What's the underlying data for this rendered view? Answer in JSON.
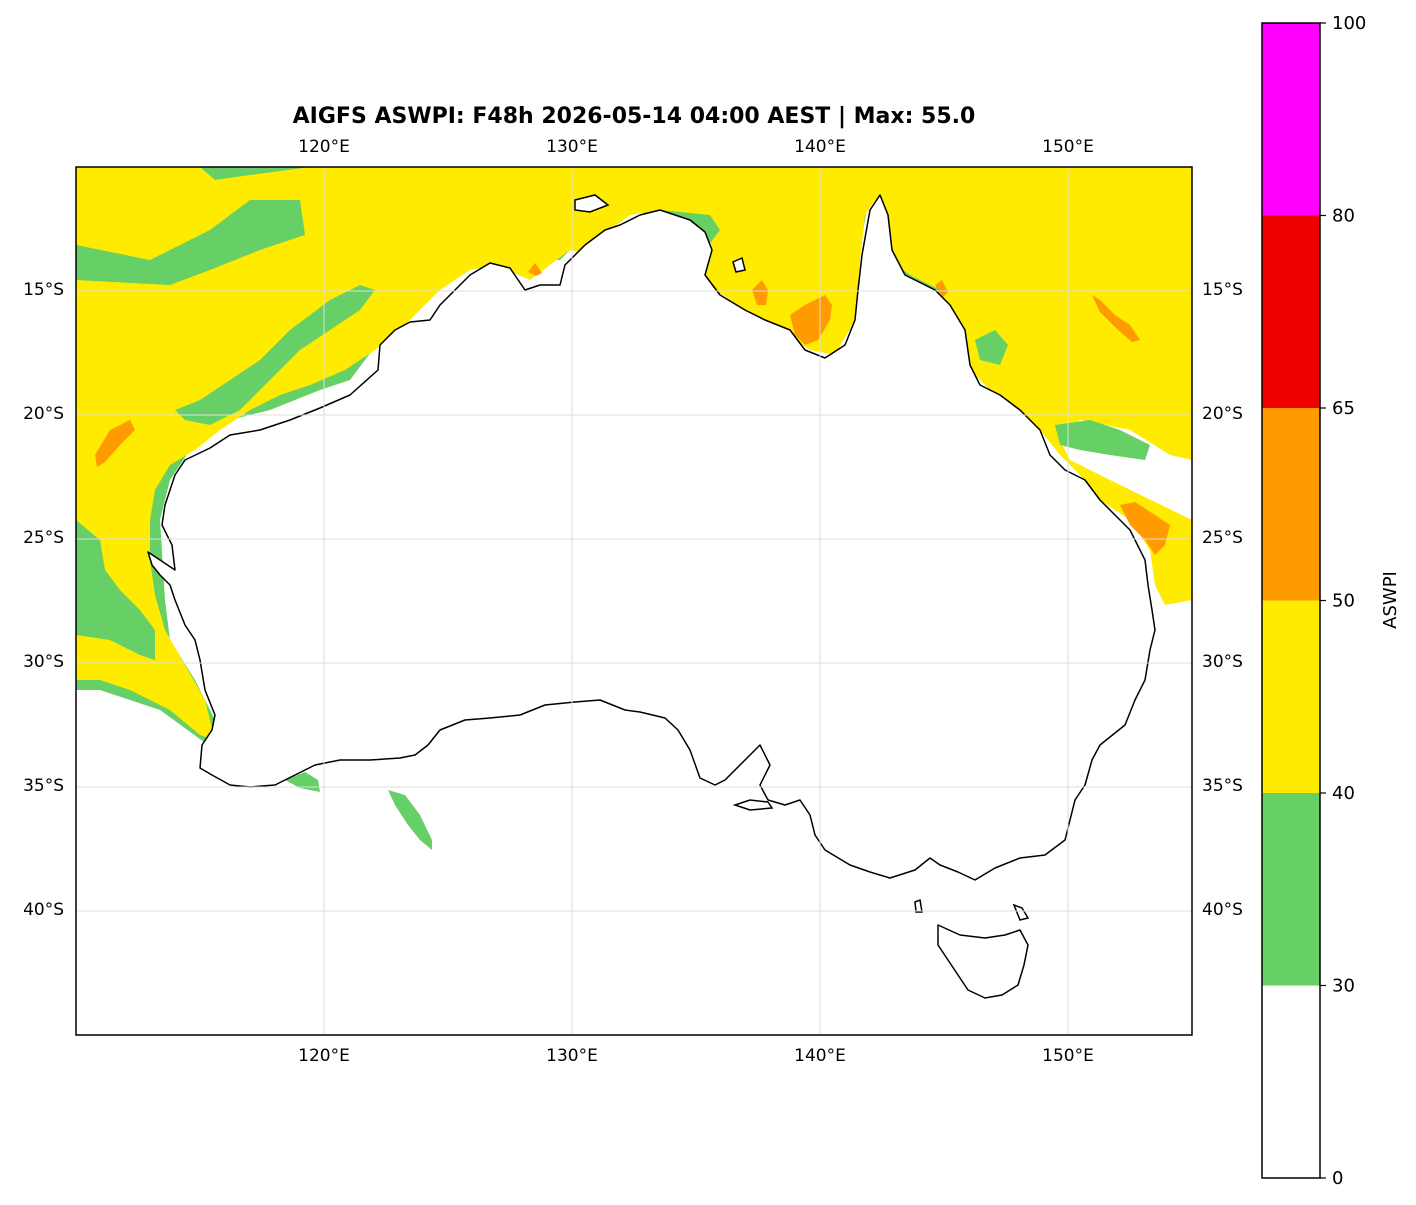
{
  "title": "AIGFS ASWPI: F48h 2026-05-14 04:00 AEST | Max: 55.0",
  "map": {
    "lon_range": [
      110,
      155
    ],
    "lat_range": [
      -45,
      -10
    ],
    "lon_ticks": [
      "120°E",
      "130°E",
      "140°E",
      "150°E"
    ],
    "lat_ticks": [
      "15°S",
      "20°S",
      "25°S",
      "30°S",
      "35°S",
      "40°S"
    ],
    "gridlines": true
  },
  "colorbar": {
    "label": "ASWPI",
    "tick_labels": [
      "0",
      "30",
      "40",
      "50",
      "65",
      "80",
      "100"
    ],
    "bands": [
      {
        "from": 0,
        "to": 30,
        "color": "#ffffff"
      },
      {
        "from": 30,
        "to": 40,
        "color": "#66cf66"
      },
      {
        "from": 40,
        "to": 50,
        "color": "#ffeb00"
      },
      {
        "from": 50,
        "to": 65,
        "color": "#ff9a00"
      },
      {
        "from": 65,
        "to": 80,
        "color": "#ee0000"
      },
      {
        "from": 80,
        "to": 100,
        "color": "#ff00ff"
      }
    ]
  },
  "colors": {
    "green": "#66cf66",
    "yellow": "#ffeb00",
    "orange": "#ff9a00",
    "coastline": "#000000",
    "gridline": "#dddddd"
  }
}
